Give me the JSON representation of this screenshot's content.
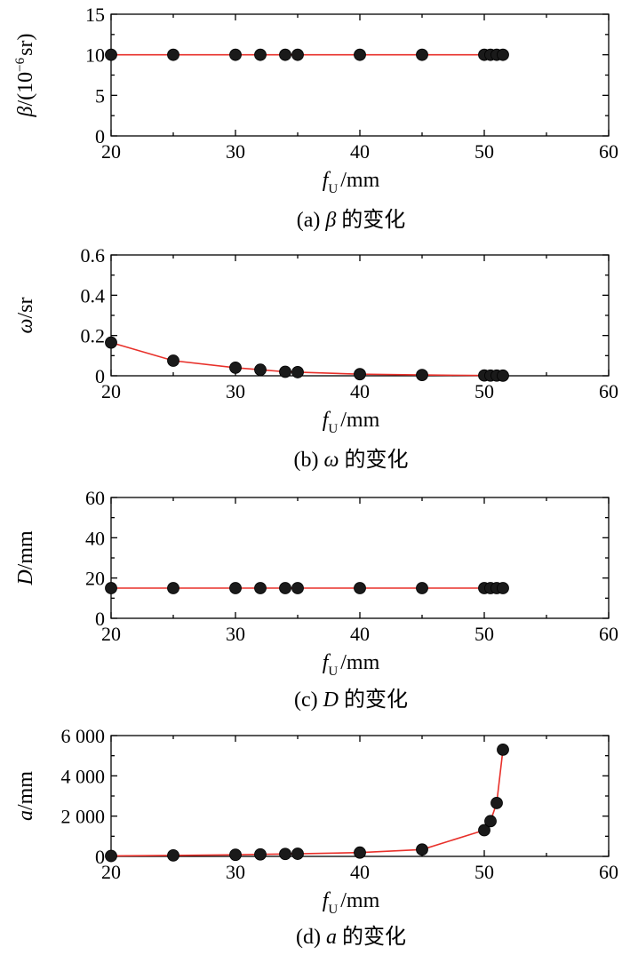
{
  "colors": {
    "line": "#e8302a",
    "marker": "#1a1a1a",
    "axis": "#000000"
  },
  "chart_data": [
    {
      "type": "line",
      "caption_prefix": "(a) ",
      "caption_symbol": "β",
      "caption_suffix": " 的变化",
      "ylabel_symbol": "β",
      "ylabel_unit": "/(10",
      "ylabel_exp": "−6",
      "ylabel_tail": "sr)",
      "xlabel_symbol": "f",
      "xlabel_sub": "U",
      "xlabel_unit": "/mm",
      "xlim": [
        20,
        60
      ],
      "ylim": [
        0,
        15
      ],
      "xticks": [
        20,
        30,
        40,
        50,
        60
      ],
      "yticks": [
        0,
        5,
        10,
        15
      ],
      "ytick_labels": [
        "0",
        "5",
        "10",
        "15"
      ],
      "grid": false,
      "x": [
        20,
        25,
        30,
        32,
        34,
        35,
        40,
        45,
        50,
        50.5,
        51,
        51.5
      ],
      "y": [
        10,
        10,
        10,
        10,
        10,
        10,
        10,
        10,
        10,
        10,
        10,
        10
      ]
    },
    {
      "type": "line",
      "caption_prefix": "(b) ",
      "caption_symbol": "ω",
      "caption_suffix": " 的变化",
      "ylabel_symbol": "ω",
      "ylabel_unit": "/sr",
      "xlabel_symbol": "f",
      "xlabel_sub": "U",
      "xlabel_unit": "/mm",
      "xlim": [
        20,
        60
      ],
      "ylim": [
        0,
        0.6
      ],
      "xticks": [
        20,
        30,
        40,
        50,
        60
      ],
      "yticks": [
        0,
        0.2,
        0.4,
        0.6
      ],
      "ytick_labels": [
        "0",
        "0.2",
        "0.4",
        "0.6"
      ],
      "grid": false,
      "x": [
        20,
        25,
        30,
        32,
        34,
        35,
        40,
        45,
        50,
        50.5,
        51,
        51.5
      ],
      "y": [
        0.165,
        0.075,
        0.04,
        0.03,
        0.02,
        0.018,
        0.008,
        0.004,
        0.0015,
        0.0012,
        0.001,
        0.0008
      ]
    },
    {
      "type": "line",
      "caption_prefix": "(c) ",
      "caption_symbol": "D",
      "caption_suffix": " 的变化",
      "ylabel_symbol": "D",
      "ylabel_unit": "/mm",
      "xlabel_symbol": "f",
      "xlabel_sub": "U",
      "xlabel_unit": "/mm",
      "xlim": [
        20,
        60
      ],
      "ylim": [
        0,
        60
      ],
      "xticks": [
        20,
        30,
        40,
        50,
        60
      ],
      "yticks": [
        0,
        20,
        40,
        60
      ],
      "ytick_labels": [
        "0",
        "20",
        "40",
        "60"
      ],
      "grid": false,
      "x": [
        20,
        25,
        30,
        32,
        34,
        35,
        40,
        45,
        50,
        50.5,
        51,
        51.5
      ],
      "y": [
        15,
        15,
        15,
        15,
        15,
        15,
        15,
        15,
        15,
        15,
        15,
        15
      ]
    },
    {
      "type": "line",
      "caption_prefix": "(d) ",
      "caption_symbol": "a",
      "caption_suffix": " 的变化",
      "ylabel_symbol": "a",
      "ylabel_unit": "/mm",
      "xlabel_symbol": "f",
      "xlabel_sub": "U",
      "xlabel_unit": "/mm",
      "xlim": [
        20,
        60
      ],
      "ylim": [
        0,
        6000
      ],
      "xticks": [
        20,
        30,
        40,
        50,
        60
      ],
      "yticks": [
        0,
        2000,
        4000,
        6000
      ],
      "ytick_labels": [
        "0",
        "2 000",
        "4 000",
        "6 000"
      ],
      "grid": false,
      "x": [
        20,
        25,
        30,
        32,
        34,
        35,
        40,
        45,
        50,
        50.5,
        51,
        51.5
      ],
      "y": [
        20,
        50,
        80,
        100,
        120,
        130,
        190,
        340,
        1300,
        1750,
        2650,
        5300
      ]
    }
  ]
}
